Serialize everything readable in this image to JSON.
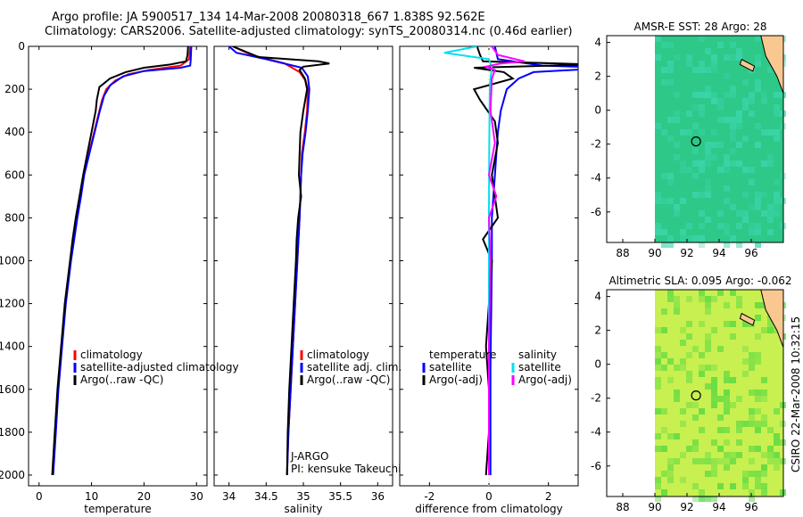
{
  "header": {
    "line1": "Argo profile: JA 5900517_134 14-Mar-2008 20080318_667 1.838S 92.562E",
    "line2": "Climatology: CARS2006. Satellite-adjusted climatology: synTS_20080314.nc (0.46d earlier)"
  },
  "credit": "CSIRO 22-Mar-2008 10:32:15",
  "colors": {
    "climatology": "#ff0000",
    "satellite": "#0000ff",
    "argo": "#000000",
    "sal_satellite": "#00e0f0",
    "sal_argo": "#ff00ff"
  },
  "chart_data": [
    {
      "type": "line",
      "title": "",
      "xlabel": "temperature",
      "ylabel": "",
      "xlim": [
        -2,
        32
      ],
      "ylim": [
        2050,
        0
      ],
      "xticks": [
        0,
        10,
        20,
        30
      ],
      "yticks": [
        0,
        200,
        400,
        600,
        800,
        1000,
        1200,
        1400,
        1600,
        1800,
        2000
      ],
      "legend": [
        "climatology",
        "satellite-adjusted climatology",
        "Argo(..raw -QC)"
      ],
      "series": [
        {
          "name": "climatology",
          "color": "#ff0000",
          "depth": [
            0,
            60,
            90,
            110,
            130,
            160,
            200,
            250,
            300,
            400,
            500,
            600,
            700,
            800,
            900,
            1000,
            1200,
            1400,
            1600,
            1800,
            2000
          ],
          "values": [
            28.8,
            28.6,
            27.0,
            21.0,
            17.0,
            14.5,
            12.8,
            12.0,
            11.5,
            10.5,
            9.5,
            8.5,
            7.9,
            7.2,
            6.6,
            6.0,
            5.0,
            4.3,
            3.6,
            3.1,
            2.6
          ]
        },
        {
          "name": "satellite-adjusted climatology",
          "color": "#0000ff",
          "depth": [
            0,
            60,
            90,
            100,
            115,
            140,
            180,
            230,
            300,
            400,
            500,
            600,
            700,
            800,
            900,
            1000,
            1200,
            1400,
            1600,
            1800,
            2000
          ],
          "values": [
            29.0,
            28.9,
            28.8,
            27.0,
            20.0,
            16.0,
            13.6,
            12.4,
            11.6,
            10.6,
            9.6,
            8.6,
            8.0,
            7.3,
            6.7,
            6.1,
            5.1,
            4.4,
            3.7,
            3.2,
            2.7
          ]
        },
        {
          "name": "Argo(..raw -QC)",
          "color": "#000000",
          "depth": [
            0,
            40,
            70,
            85,
            100,
            120,
            150,
            190,
            250,
            300,
            400,
            500,
            600,
            700,
            800,
            900,
            1000,
            1200,
            1400,
            1600,
            1800,
            2000
          ],
          "values": [
            28.4,
            28.3,
            28.0,
            25.0,
            20.0,
            16.5,
            13.5,
            11.5,
            11.0,
            10.8,
            10.0,
            9.2,
            8.4,
            7.7,
            7.0,
            6.4,
            5.9,
            4.9,
            4.2,
            3.5,
            3.0,
            2.5
          ]
        }
      ]
    },
    {
      "type": "line",
      "title": "",
      "xlabel": "salinity",
      "ylabel": "",
      "xlim": [
        33.8,
        36.2
      ],
      "ylim": [
        2050,
        0
      ],
      "xticks": [
        34,
        34.5,
        35,
        35.5,
        36
      ],
      "legend": [
        "climatology",
        "satellite adj. clim.",
        "Argo(..raw -QC)"
      ],
      "annotations": [
        "J-ARGO",
        "PI: kensuke Takeuchi"
      ],
      "series": [
        {
          "name": "climatology",
          "color": "#ff0000",
          "depth": [
            0,
            40,
            80,
            120,
            160,
            200,
            300,
            400,
            500,
            600,
            800,
            1000,
            1200,
            1400,
            1600,
            1800,
            2000
          ],
          "values": [
            34.05,
            34.3,
            34.75,
            34.95,
            35.03,
            35.06,
            35.05,
            35.02,
            34.98,
            34.97,
            34.95,
            34.92,
            34.89,
            34.86,
            34.83,
            34.8,
            34.78
          ]
        },
        {
          "name": "satellite adj. clim.",
          "color": "#0000ff",
          "depth": [
            0,
            30,
            60,
            100,
            140,
            200,
            300,
            400,
            500,
            600,
            800,
            1000,
            1200,
            1400,
            1600,
            1800,
            2000
          ],
          "values": [
            34.0,
            34.1,
            34.5,
            34.98,
            35.06,
            35.08,
            35.06,
            35.03,
            34.99,
            34.97,
            34.95,
            34.92,
            34.89,
            34.86,
            34.83,
            34.8,
            34.78
          ]
        },
        {
          "name": "Argo(..raw -QC)",
          "color": "#000000",
          "depth": [
            0,
            50,
            70,
            80,
            95,
            110,
            150,
            200,
            300,
            400,
            500,
            600,
            700,
            800,
            900,
            1000,
            1200,
            1400,
            1600,
            1800,
            2000
          ],
          "values": [
            34.05,
            34.4,
            35.2,
            35.35,
            35.0,
            34.95,
            35.02,
            35.05,
            35.0,
            34.96,
            34.95,
            34.94,
            34.97,
            34.93,
            34.91,
            34.9,
            34.87,
            34.84,
            34.81,
            34.79,
            34.78
          ]
        }
      ]
    },
    {
      "type": "line",
      "title": "",
      "xlabel": "difference from climatology",
      "ylabel": "",
      "xlim": [
        -3,
        3
      ],
      "ylim": [
        2050,
        0
      ],
      "xticks": [
        -2,
        0,
        2
      ],
      "legend_groups": [
        {
          "heading": "temperature",
          "items": [
            "satellite",
            "Argo(-adj)"
          ]
        },
        {
          "heading": "salinity",
          "items": [
            "satellite",
            "Argo(-adj)"
          ]
        }
      ],
      "series": [
        {
          "name": "temperature satellite",
          "color": "#0000ff",
          "depth": [
            0,
            60,
            90,
            100,
            110,
            120,
            150,
            200,
            300,
            400,
            600,
            800,
            1000,
            1500,
            2000
          ],
          "values": [
            0.2,
            0.3,
            1.8,
            4.0,
            2.8,
            1.5,
            1.0,
            0.6,
            0.4,
            0.3,
            0.2,
            0.1,
            0.1,
            0.05,
            0.05
          ]
        },
        {
          "name": "temperature Argo(-adj)",
          "color": "#000000",
          "depth": [
            0,
            40,
            70,
            85,
            100,
            120,
            150,
            200,
            250,
            350,
            450,
            600,
            800,
            900,
            1000,
            1200,
            1400,
            1600,
            1800,
            2000
          ],
          "values": [
            -0.4,
            -0.3,
            -0.2,
            3.5,
            -0.5,
            0.5,
            0.8,
            -0.5,
            -0.3,
            0.2,
            0.3,
            0.1,
            0.3,
            -0.2,
            0.1,
            0.0,
            -0.1,
            0.0,
            0.0,
            -0.1
          ]
        },
        {
          "name": "salinity satellite",
          "color": "#00e0f0",
          "depth": [
            0,
            30,
            60,
            100,
            150,
            200,
            300,
            500,
            800,
            1200,
            1600,
            2000
          ],
          "values": [
            -0.4,
            -1.5,
            0.0,
            0.1,
            0.05,
            0.03,
            0.02,
            0.01,
            0.0,
            0.0,
            0.0,
            0.0
          ]
        },
        {
          "name": "salinity Argo(-adj)",
          "color": "#ff00ff",
          "depth": [
            0,
            40,
            70,
            80,
            95,
            110,
            150,
            300,
            450,
            600,
            700,
            800,
            1000,
            1400,
            1800,
            2000
          ],
          "values": [
            0.1,
            0.3,
            1.2,
            0.4,
            -0.1,
            0.2,
            0.1,
            0.05,
            0.2,
            0.0,
            0.25,
            0.0,
            0.05,
            0.0,
            0.0,
            0.0
          ]
        }
      ]
    },
    {
      "type": "heatmap",
      "title": "AMSR-E SST: 28 Argo: 28",
      "xlim": [
        87,
        98
      ],
      "ylim": [
        -7.8,
        4.4
      ],
      "xticks": [
        88,
        90,
        92,
        94,
        96
      ],
      "yticks": [
        -6,
        -4,
        -2,
        0,
        2,
        4
      ],
      "marker": {
        "lon": 92.562,
        "lat": -1.838
      },
      "base_color": "#2ec889",
      "alt_color": "#3cd8b0",
      "land_color": "#f9c890"
    },
    {
      "type": "heatmap",
      "title": "Altimetric SLA: 0.095 Argo: -0.062",
      "xlim": [
        87,
        98
      ],
      "ylim": [
        -7.8,
        4.4
      ],
      "xticks": [
        88,
        90,
        92,
        94,
        96
      ],
      "yticks": [
        -6,
        -4,
        -2,
        0,
        2,
        4
      ],
      "marker": {
        "lon": 92.562,
        "lat": -1.838
      },
      "base_color": "#c8f050",
      "alt_color": "#50d840",
      "land_color": "#f9c890"
    }
  ]
}
